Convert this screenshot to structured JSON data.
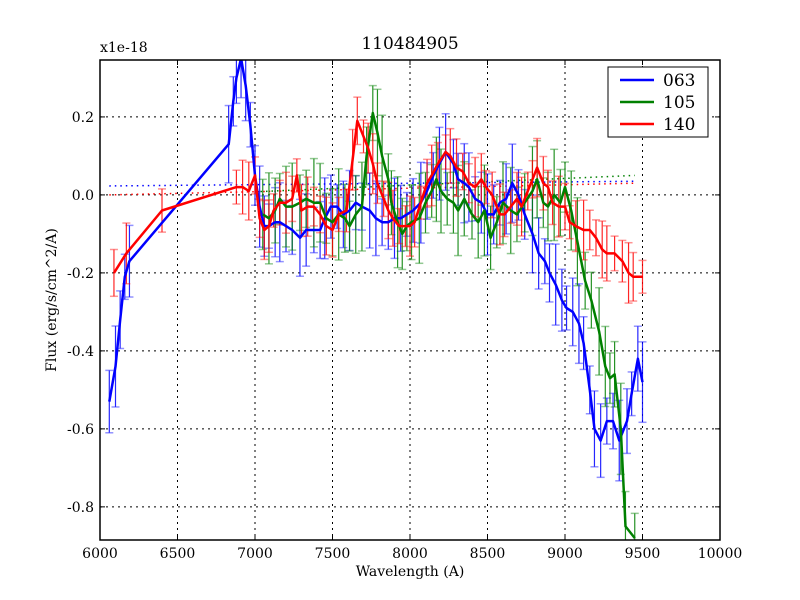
{
  "chart_data": {
    "type": "line",
    "title": "110484905",
    "xlabel": "Wavelength (A)",
    "ylabel": "Flux (erg/s/cm^2/A)",
    "y_multiplier_label": "x1e-18",
    "xlim": [
      6000,
      10000
    ],
    "ylim": [
      -0.885,
      0.346
    ],
    "xticks": [
      6000,
      6500,
      7000,
      7500,
      8000,
      8500,
      9000,
      9500,
      10000
    ],
    "xtick_labels": [
      "6000",
      "6500",
      "7000",
      "7500",
      "8000",
      "8500",
      "9000",
      "9500",
      "10000"
    ],
    "yticks": [
      0.2,
      0.0,
      -0.2,
      -0.4,
      -0.6,
      -0.8
    ],
    "ytick_labels": [
      "0.2",
      "0.0",
      "-0.2",
      "-0.4",
      "-0.6",
      "-0.8"
    ],
    "grid": true,
    "legend_position": "upper right",
    "error_bars": true,
    "series": [
      {
        "name": "063",
        "color": "#0000ff",
        "x": [
          6060,
          6100,
          6130,
          6160,
          6190,
          6830,
          6860,
          6880,
          6910,
          6940,
          6970,
          7000,
          7030,
          7060,
          7090,
          7130,
          7160,
          7200,
          7240,
          7290,
          7330,
          7380,
          7420,
          7450,
          7490,
          7530,
          7570,
          7610,
          7650,
          7690,
          7740,
          7780,
          7820,
          7860,
          7900,
          7940,
          7980,
          8020,
          8070,
          8110,
          8150,
          8190,
          8230,
          8280,
          8310,
          8350,
          8380,
          8420,
          8460,
          8500,
          8540,
          8580,
          8620,
          8660,
          8700,
          8740,
          8790,
          8830,
          8870,
          8900,
          8940,
          8980,
          9010,
          9050,
          9090,
          9120,
          9160,
          9190,
          9230,
          9270,
          9310,
          9350,
          9400,
          9430,
          9470,
          9500
        ],
        "y": [
          -0.53,
          -0.44,
          -0.32,
          -0.21,
          -0.17,
          0.13,
          0.24,
          0.3,
          0.35,
          0.28,
          0.18,
          0.05,
          -0.03,
          -0.08,
          -0.08,
          -0.07,
          -0.07,
          -0.08,
          -0.09,
          -0.11,
          -0.09,
          -0.09,
          -0.09,
          -0.06,
          -0.03,
          -0.03,
          -0.05,
          -0.04,
          -0.02,
          -0.03,
          -0.04,
          -0.06,
          -0.07,
          -0.07,
          -0.06,
          -0.06,
          -0.05,
          -0.04,
          -0.02,
          0.01,
          0.05,
          0.08,
          0.11,
          0.08,
          0.04,
          0.03,
          0.02,
          -0.01,
          -0.02,
          -0.05,
          -0.05,
          -0.02,
          -0.01,
          0.03,
          0.0,
          -0.05,
          -0.1,
          -0.15,
          -0.17,
          -0.2,
          -0.23,
          -0.27,
          -0.29,
          -0.3,
          -0.33,
          -0.38,
          -0.5,
          -0.6,
          -0.63,
          -0.58,
          -0.58,
          -0.63,
          -0.58,
          -0.51,
          -0.42,
          -0.48
        ],
        "err": 0.08,
        "continuum": {
          "x": [
            6060,
            9450
          ],
          "y": [
            0.023,
            0.035
          ]
        }
      },
      {
        "name": "105",
        "color": "#008000",
        "x": [
          7050,
          7090,
          7130,
          7160,
          7200,
          7240,
          7290,
          7330,
          7380,
          7420,
          7460,
          7500,
          7540,
          7580,
          7610,
          7650,
          7690,
          7720,
          7760,
          7790,
          7820,
          7860,
          7880,
          7920,
          7950,
          7980,
          8010,
          8060,
          8100,
          8140,
          8170,
          8200,
          8240,
          8280,
          8310,
          8350,
          8400,
          8440,
          8480,
          8520,
          8560,
          8600,
          8650,
          8690,
          8740,
          8790,
          8820,
          8860,
          8890,
          8930,
          8970,
          9000,
          9040,
          9080,
          9130,
          9170,
          9220,
          9260,
          9290,
          9320,
          9360,
          9390,
          9450
        ],
        "y": [
          -0.05,
          -0.06,
          -0.04,
          -0.01,
          -0.03,
          -0.03,
          -0.02,
          -0.01,
          -0.02,
          -0.02,
          -0.06,
          -0.07,
          -0.05,
          -0.06,
          -0.08,
          -0.05,
          -0.03,
          0.1,
          0.21,
          0.16,
          0.1,
          0.04,
          -0.02,
          -0.07,
          -0.1,
          -0.08,
          -0.07,
          -0.06,
          -0.02,
          0.01,
          0.04,
          0.01,
          -0.01,
          -0.02,
          -0.04,
          -0.01,
          -0.05,
          -0.07,
          -0.04,
          -0.11,
          -0.07,
          -0.02,
          -0.04,
          -0.05,
          -0.02,
          0.01,
          0.04,
          -0.02,
          -0.03,
          0.0,
          -0.02,
          0.02,
          -0.04,
          -0.12,
          -0.22,
          -0.27,
          -0.35,
          -0.44,
          -0.47,
          -0.46,
          -0.6,
          -0.85,
          -0.88
        ],
        "err": 0.09,
        "continuum": {
          "x": [
            7000,
            9450
          ],
          "y": [
            0.008,
            0.05
          ]
        }
      },
      {
        "name": "140",
        "color": "#ff0000",
        "x": [
          6090,
          6170,
          6400,
          6880,
          6920,
          6960,
          7000,
          7030,
          7060,
          7090,
          7120,
          7160,
          7200,
          7240,
          7270,
          7300,
          7340,
          7380,
          7420,
          7460,
          7500,
          7540,
          7590,
          7630,
          7660,
          7700,
          7730,
          7760,
          7790,
          7830,
          7860,
          7890,
          7930,
          7970,
          8000,
          8030,
          8070,
          8110,
          8140,
          8180,
          8230,
          8260,
          8300,
          8340,
          8380,
          8420,
          8460,
          8490,
          8530,
          8580,
          8610,
          8650,
          8690,
          8720,
          8760,
          8790,
          8820,
          8860,
          8890,
          8920,
          8960,
          9000,
          9030,
          9070,
          9120,
          9160,
          9200,
          9240,
          9270,
          9320,
          9370,
          9410,
          9440,
          9500
        ],
        "y": [
          -0.2,
          -0.15,
          -0.04,
          0.02,
          0.02,
          0.01,
          0.05,
          -0.06,
          -0.09,
          -0.08,
          -0.04,
          -0.02,
          -0.02,
          -0.01,
          0.05,
          -0.04,
          -0.03,
          -0.03,
          -0.05,
          -0.08,
          -0.09,
          -0.05,
          -0.04,
          0.09,
          0.19,
          0.15,
          0.12,
          0.08,
          0.03,
          -0.01,
          -0.04,
          -0.06,
          -0.08,
          -0.08,
          -0.08,
          -0.07,
          -0.02,
          0.03,
          0.05,
          0.08,
          0.11,
          0.1,
          0.07,
          0.06,
          0.03,
          0.02,
          0.04,
          0.02,
          0.0,
          -0.05,
          -0.05,
          -0.03,
          -0.01,
          -0.03,
          0.01,
          0.04,
          0.07,
          0.03,
          0.02,
          -0.02,
          -0.03,
          -0.03,
          -0.07,
          -0.08,
          -0.09,
          -0.09,
          -0.11,
          -0.14,
          -0.15,
          -0.15,
          -0.17,
          -0.2,
          -0.21,
          -0.21
        ],
        "err": 0.06,
        "continuum": {
          "x": [
            6060,
            9450
          ],
          "y": [
            0.0,
            0.03
          ]
        }
      }
    ]
  },
  "legend": {
    "items": [
      {
        "label": "063",
        "color": "#0000ff"
      },
      {
        "label": "105",
        "color": "#008000"
      },
      {
        "label": "140",
        "color": "#ff0000"
      }
    ]
  }
}
